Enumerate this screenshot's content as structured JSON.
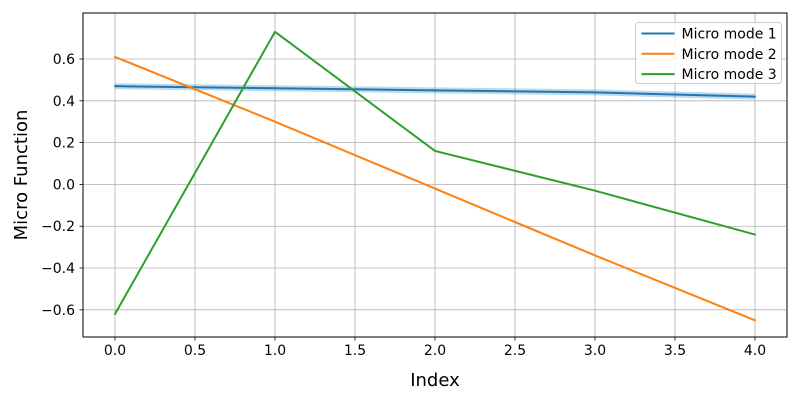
{
  "figure": {
    "background": "#ffffff"
  },
  "chart_data": {
    "type": "line",
    "title": "",
    "xlabel": "Index",
    "ylabel": "Micro Function",
    "x": [
      0,
      1,
      2,
      3,
      4
    ],
    "series": [
      {
        "name": "Micro mode 1",
        "color": "#1f77b4",
        "band": true,
        "values": [
          0.47,
          0.46,
          0.45,
          0.44,
          0.42
        ]
      },
      {
        "name": "Micro mode 2",
        "color": "#ff7f0e",
        "band": false,
        "values": [
          0.61,
          0.3,
          -0.02,
          -0.34,
          -0.65
        ]
      },
      {
        "name": "Micro mode 3",
        "color": "#2ca02c",
        "band": false,
        "values": [
          -0.62,
          0.73,
          0.16,
          -0.03,
          -0.24
        ]
      }
    ],
    "xlim": [
      -0.2,
      4.2
    ],
    "ylim": [
      -0.73,
      0.82
    ],
    "xticks": [
      0.0,
      0.5,
      1.0,
      1.5,
      2.0,
      2.5,
      3.0,
      3.5,
      4.0
    ],
    "xtick_labels": [
      "0.0",
      "0.5",
      "1.0",
      "1.5",
      "2.0",
      "2.5",
      "3.0",
      "3.5",
      "4.0"
    ],
    "yticks": [
      -0.6,
      -0.4,
      -0.2,
      0.0,
      0.2,
      0.4,
      0.6
    ],
    "ytick_labels": [
      "−0.6",
      "−0.4",
      "−0.2",
      "0.0",
      "0.2",
      "0.4",
      "0.6"
    ],
    "grid": true,
    "grid_color": "#b0b0b0",
    "spine_color": "#000000",
    "legend": {
      "position": "upper right",
      "border_color": "#cccccc",
      "background": "#ffffff",
      "entries": [
        "Micro mode 1",
        "Micro mode 2",
        "Micro mode 3"
      ]
    }
  }
}
